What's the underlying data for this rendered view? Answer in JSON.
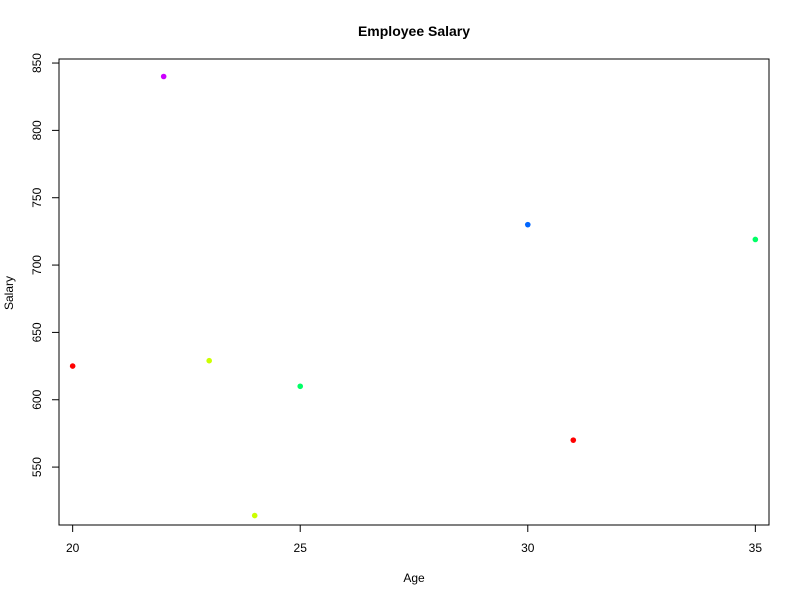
{
  "chart_data": {
    "type": "scatter",
    "title": "Employee Salary",
    "xlabel": "Age",
    "ylabel": "Salary",
    "xlim": [
      19.7,
      35.3
    ],
    "ylim": [
      507,
      853
    ],
    "xticks": [
      20,
      25,
      30,
      35
    ],
    "yticks": [
      550,
      600,
      650,
      700,
      750,
      800,
      850
    ],
    "grid": false,
    "points": [
      {
        "x": 20,
        "y": 625,
        "color": "#ff0000"
      },
      {
        "x": 22,
        "y": 840,
        "color": "#cc00ff"
      },
      {
        "x": 23,
        "y": 629,
        "color": "#ccff00"
      },
      {
        "x": 24,
        "y": 514,
        "color": "#ccff00"
      },
      {
        "x": 25,
        "y": 610,
        "color": "#00ff66"
      },
      {
        "x": 30,
        "y": 730,
        "color": "#0066ff"
      },
      {
        "x": 31,
        "y": 570,
        "color": "#ff0000"
      },
      {
        "x": 35,
        "y": 719,
        "color": "#00ff66"
      }
    ]
  }
}
